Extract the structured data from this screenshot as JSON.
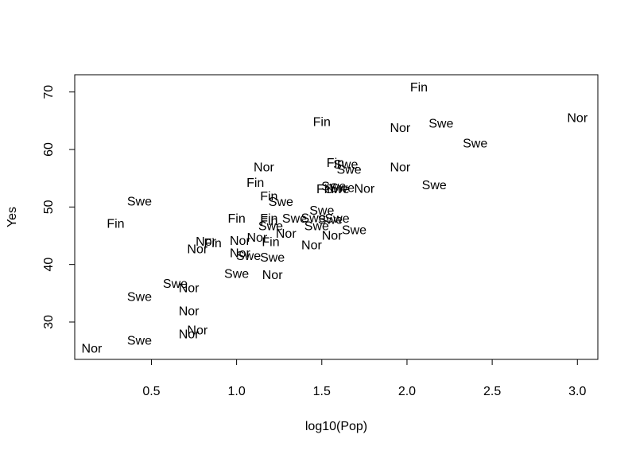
{
  "chart_data": {
    "type": "scatter",
    "marker": "text-label",
    "title": "",
    "xlabel": "log10(Pop)",
    "ylabel": "Yes",
    "xlim": [
      0.05,
      3.12
    ],
    "ylim": [
      23.5,
      73
    ],
    "xticks": [
      {
        "value": 0.5,
        "label": "0.5"
      },
      {
        "value": 1.0,
        "label": "1.0"
      },
      {
        "value": 1.5,
        "label": "1.5"
      },
      {
        "value": 2.0,
        "label": "2.0"
      },
      {
        "value": 2.5,
        "label": "2.5"
      },
      {
        "value": 3.0,
        "label": "3.0"
      }
    ],
    "yticks": [
      {
        "value": 30,
        "label": "30"
      },
      {
        "value": 40,
        "label": "40"
      },
      {
        "value": 50,
        "label": "50"
      },
      {
        "value": 60,
        "label": "60"
      },
      {
        "value": 70,
        "label": "70"
      }
    ],
    "grid": false,
    "legend": "none",
    "points": [
      {
        "x": 2.07,
        "y": 70.7,
        "label": "Fin"
      },
      {
        "x": 1.5,
        "y": 64.7,
        "label": "Fin"
      },
      {
        "x": 1.96,
        "y": 63.7,
        "label": "Nor"
      },
      {
        "x": 2.2,
        "y": 64.4,
        "label": "Swe"
      },
      {
        "x": 3.0,
        "y": 65.4,
        "label": "Nor"
      },
      {
        "x": 2.4,
        "y": 61.0,
        "label": "Swe"
      },
      {
        "x": 1.58,
        "y": 57.6,
        "label": "Fin"
      },
      {
        "x": 1.64,
        "y": 57.3,
        "label": "Swe"
      },
      {
        "x": 1.66,
        "y": 56.4,
        "label": "Swe"
      },
      {
        "x": 1.16,
        "y": 56.8,
        "label": "Nor"
      },
      {
        "x": 1.96,
        "y": 56.8,
        "label": "Nor"
      },
      {
        "x": 1.11,
        "y": 54.1,
        "label": "Fin"
      },
      {
        "x": 2.16,
        "y": 53.7,
        "label": "Swe"
      },
      {
        "x": 1.52,
        "y": 53.0,
        "label": "Fin"
      },
      {
        "x": 1.57,
        "y": 53.5,
        "label": "Swe"
      },
      {
        "x": 1.59,
        "y": 53.0,
        "label": "Swe"
      },
      {
        "x": 1.62,
        "y": 53.2,
        "label": "Swe"
      },
      {
        "x": 1.75,
        "y": 53.1,
        "label": "Nor"
      },
      {
        "x": 1.19,
        "y": 51.8,
        "label": "Fin"
      },
      {
        "x": 1.26,
        "y": 50.8,
        "label": "Swe"
      },
      {
        "x": 0.43,
        "y": 50.9,
        "label": "Swe"
      },
      {
        "x": 0.29,
        "y": 47.0,
        "label": "Fin"
      },
      {
        "x": 1.5,
        "y": 49.3,
        "label": "Swe"
      },
      {
        "x": 1.0,
        "y": 47.9,
        "label": "Fin"
      },
      {
        "x": 1.19,
        "y": 47.9,
        "label": "Fin"
      },
      {
        "x": 1.19,
        "y": 47.5,
        "label": "Fin"
      },
      {
        "x": 1.34,
        "y": 47.9,
        "label": "Swe"
      },
      {
        "x": 1.45,
        "y": 48.0,
        "label": "Swe"
      },
      {
        "x": 1.55,
        "y": 47.7,
        "label": "Swe"
      },
      {
        "x": 1.59,
        "y": 47.9,
        "label": "Swe"
      },
      {
        "x": 1.2,
        "y": 46.6,
        "label": "Swe"
      },
      {
        "x": 1.47,
        "y": 46.6,
        "label": "Swe"
      },
      {
        "x": 1.69,
        "y": 45.9,
        "label": "Swe"
      },
      {
        "x": 1.29,
        "y": 45.3,
        "label": "Nor"
      },
      {
        "x": 1.56,
        "y": 44.9,
        "label": "Nor"
      },
      {
        "x": 1.12,
        "y": 44.6,
        "label": "Nor"
      },
      {
        "x": 1.02,
        "y": 44.0,
        "label": "Nor"
      },
      {
        "x": 1.2,
        "y": 43.8,
        "label": "Fin"
      },
      {
        "x": 0.86,
        "y": 43.6,
        "label": "Fin"
      },
      {
        "x": 0.82,
        "y": 43.9,
        "label": "Nor"
      },
      {
        "x": 1.44,
        "y": 43.3,
        "label": "Nor"
      },
      {
        "x": 0.77,
        "y": 42.6,
        "label": "Nor"
      },
      {
        "x": 1.02,
        "y": 41.9,
        "label": "Nor"
      },
      {
        "x": 1.07,
        "y": 41.4,
        "label": "Swe"
      },
      {
        "x": 1.21,
        "y": 41.1,
        "label": "Swe"
      },
      {
        "x": 1.0,
        "y": 38.3,
        "label": "Swe"
      },
      {
        "x": 1.21,
        "y": 38.1,
        "label": "Nor"
      },
      {
        "x": 0.64,
        "y": 36.6,
        "label": "Swe"
      },
      {
        "x": 0.72,
        "y": 35.8,
        "label": "Nor"
      },
      {
        "x": 0.43,
        "y": 34.3,
        "label": "Swe"
      },
      {
        "x": 0.72,
        "y": 31.8,
        "label": "Nor"
      },
      {
        "x": 0.77,
        "y": 28.5,
        "label": "Nor"
      },
      {
        "x": 0.72,
        "y": 27.8,
        "label": "Nor"
      },
      {
        "x": 0.43,
        "y": 26.7,
        "label": "Swe"
      },
      {
        "x": 0.15,
        "y": 25.3,
        "label": "Nor"
      }
    ]
  }
}
